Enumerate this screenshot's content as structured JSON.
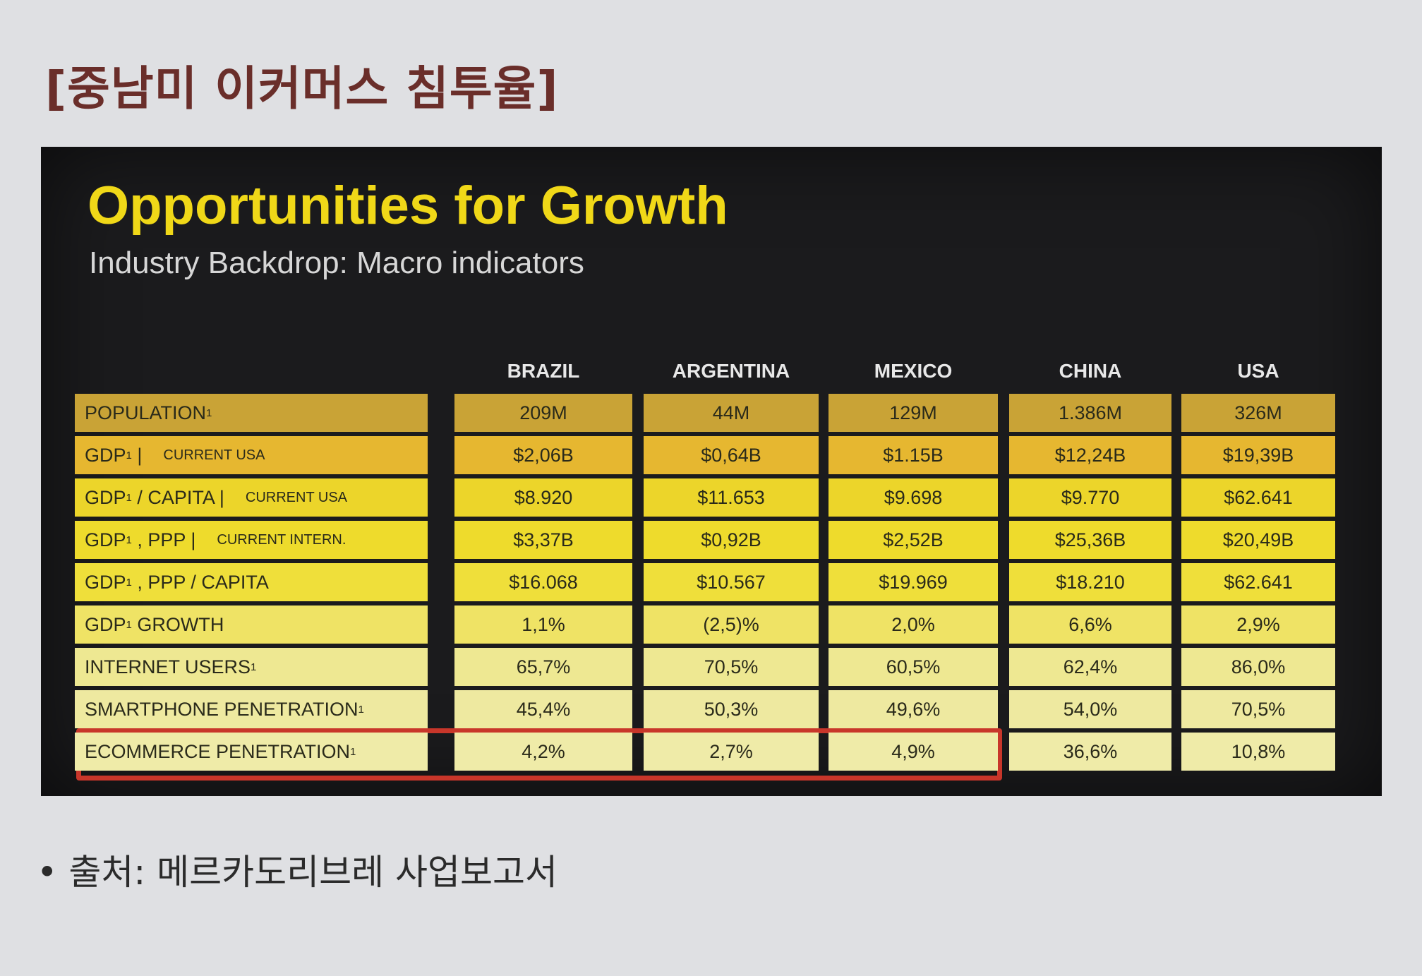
{
  "page_title": "[중남미 이커머스 침투율]",
  "panel": {
    "heading": "Opportunities for Growth",
    "subheading": "Industry Backdrop: Macro indicators"
  },
  "columns": [
    "BRAZIL",
    "ARGENTINA",
    "MEXICO",
    "CHINA",
    "USA"
  ],
  "rows": [
    {
      "label": "POPULATION",
      "sup": "1",
      "note": "",
      "values": [
        "209M",
        "44M",
        "129M",
        "1.386M",
        "326M"
      ],
      "color": "#c9a336"
    },
    {
      "label": "GDP",
      "sup": "1",
      "label_suffix": " |",
      "note": "CURRENT USA",
      "values": [
        "$2,06B",
        "$0,64B",
        "$1.15B",
        "$12,24B",
        "$19,39B"
      ],
      "color": "#e6b730"
    },
    {
      "label": "GDP",
      "sup": "1",
      "label_suffix": " / CAPITA |",
      "note": "CURRENT USA",
      "values": [
        "$8.920",
        "$11.653",
        "$9.698",
        "$9.770",
        "$62.641"
      ],
      "color": "#ecd52a"
    },
    {
      "label": "GDP",
      "sup": "1",
      "label_suffix": " , PPP |",
      "note": "CURRENT INTERN.",
      "values": [
        "$3,37B",
        "$0,92B",
        "$2,52B",
        "$25,36B",
        "$20,49B"
      ],
      "color": "#eedb2c"
    },
    {
      "label": "GDP",
      "sup": "1",
      "label_suffix": " , PPP / CAPITA",
      "note": "",
      "values": [
        "$16.068",
        "$10.567",
        "$19.969",
        "$18.210",
        "$62.641"
      ],
      "color": "#efdf3a"
    },
    {
      "label": "GDP",
      "sup": "1",
      "label_suffix": " GROWTH",
      "note": "",
      "values": [
        "1,1%",
        "(2,5)%",
        "2,0%",
        "6,6%",
        "2,9%"
      ],
      "color": "#efe365"
    },
    {
      "label": "INTERNET USERS",
      "sup": "1",
      "note": "",
      "values": [
        "65,7%",
        "70,5%",
        "60,5%",
        "62,4%",
        "86,0%"
      ],
      "color": "#eee892"
    },
    {
      "label": "SMARTPHONE PENETRATION",
      "sup": "1",
      "note": "",
      "values": [
        "45,4%",
        "50,3%",
        "49,6%",
        "54,0%",
        "70,5%"
      ],
      "color": "#eee9a0"
    },
    {
      "label": "ECOMMERCE PENETRATION",
      "sup": "1",
      "note": "",
      "values": [
        "4,2%",
        "2,7%",
        "4,9%",
        "36,6%",
        "10,8%"
      ],
      "color": "#efeba8"
    }
  ],
  "source": "• 출처: 메르카도리브레 사업보고서",
  "colors": {
    "highlight_border": "#c8362a",
    "heading": "#f0d818",
    "page_title": "#6a2e2a"
  }
}
